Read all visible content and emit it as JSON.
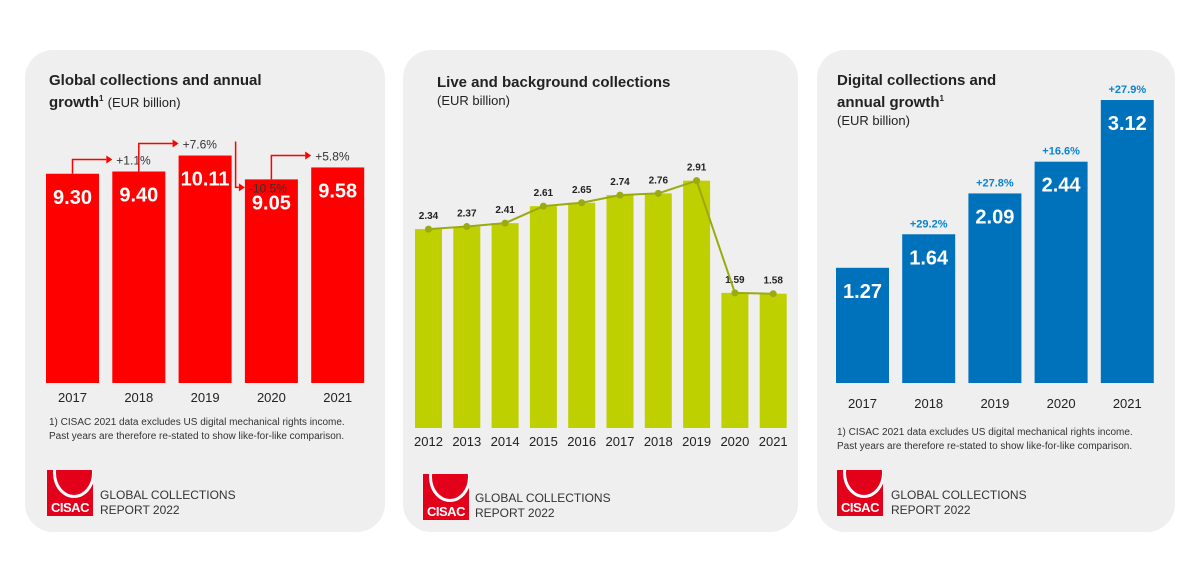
{
  "panels": [
    {
      "title": "Global collections and annual growth",
      "sup": "1",
      "subtitle": "(EUR billion)",
      "note": [
        "1) CISAC 2021 data excludes US digital mechanical rights income.",
        "Past years are therefore re-stated to show like-for-like comparison."
      ],
      "brand": [
        "GLOBAL COLLECTIONS",
        "REPORT 2022"
      ],
      "logo": "CISAC"
    },
    {
      "title": "Live and background collections",
      "subtitle": "(EUR billion)",
      "brand": [
        "GLOBAL COLLECTIONS",
        "REPORT 2022"
      ],
      "logo": "CISAC"
    },
    {
      "title": "Digital collections and annual growth",
      "sup": "1",
      "subtitle": "(EUR billion)",
      "note": [
        "1) CISAC 2021 data excludes US digital mechanical rights income.",
        "Past years are therefore re-stated to show like-for-like comparison."
      ],
      "brand": [
        "GLOBAL COLLECTIONS",
        "REPORT 2022"
      ],
      "logo": "CISAC"
    }
  ],
  "chart_data": [
    {
      "type": "bar",
      "title": "Global collections and annual growth (EUR billion)",
      "categories": [
        "2017",
        "2018",
        "2019",
        "2020",
        "2021"
      ],
      "values": [
        9.3,
        9.4,
        10.11,
        9.05,
        9.58
      ],
      "labels": [
        "9.30",
        "9.40",
        "10.11",
        "9.05",
        "9.58"
      ],
      "growth": [
        "",
        "+1.1%",
        "+7.6%",
        "-10.5%",
        "+5.8%"
      ],
      "color": "#ff0000"
    },
    {
      "type": "bar",
      "title": "Live and background collections (EUR billion)",
      "categories": [
        "2012",
        "2013",
        "2014",
        "2015",
        "2016",
        "2017",
        "2018",
        "2019",
        "2020",
        "2021"
      ],
      "values": [
        2.34,
        2.37,
        2.41,
        2.61,
        2.65,
        2.74,
        2.76,
        2.91,
        1.59,
        1.58
      ],
      "labels": [
        "2.34",
        "2.37",
        "2.41",
        "2.61",
        "2.65",
        "2.74",
        "2.76",
        "2.91",
        "1.59",
        "1.58"
      ],
      "color": "#bfd000",
      "line_color": "#9aaa10"
    },
    {
      "type": "bar",
      "title": "Digital collections and annual growth (EUR billion)",
      "categories": [
        "2017",
        "2018",
        "2019",
        "2020",
        "2021"
      ],
      "values": [
        1.27,
        1.64,
        2.09,
        2.44,
        3.12
      ],
      "labels": [
        "1.27",
        "1.64",
        "2.09",
        "2.44",
        "3.12"
      ],
      "growth": [
        "",
        "+29.2%",
        "+27.8%",
        "+16.6%",
        "+27.9%"
      ],
      "color": "#0072bc",
      "growth_color": "#0a84d0"
    }
  ]
}
